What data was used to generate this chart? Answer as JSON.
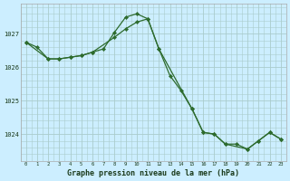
{
  "title": "Graphe pression niveau de la mer (hPa)",
  "background_color": "#cceeff",
  "grid_color": "#aacccc",
  "line_color": "#2d6b2d",
  "marker_color": "#2d6b2d",
  "xlim": [
    -0.5,
    23.5
  ],
  "ylim": [
    1023.2,
    1027.9
  ],
  "yticks": [
    1024,
    1025,
    1026,
    1027
  ],
  "xticks": [
    0,
    1,
    2,
    3,
    4,
    5,
    6,
    7,
    8,
    9,
    10,
    11,
    12,
    13,
    14,
    15,
    16,
    17,
    18,
    19,
    20,
    21,
    22,
    23
  ],
  "series1_x": [
    0,
    1,
    2,
    3,
    4,
    5,
    6,
    7,
    8,
    9,
    10,
    11,
    12,
    13,
    14,
    15,
    16,
    17,
    18,
    19,
    20,
    21,
    22,
    23
  ],
  "series1_y": [
    1026.75,
    1026.6,
    1026.25,
    1026.25,
    1026.3,
    1026.35,
    1026.45,
    1026.55,
    1027.05,
    1027.5,
    1027.6,
    1027.45,
    1026.55,
    1025.75,
    1025.3,
    1024.75,
    1024.05,
    1024.0,
    1023.7,
    1023.7,
    1023.55,
    1023.8,
    1024.05,
    1023.85
  ],
  "series2_x": [
    0,
    2,
    3,
    4,
    5,
    6,
    8,
    9,
    10,
    11,
    12,
    15,
    16,
    17,
    18,
    20,
    21,
    22,
    23
  ],
  "series2_y": [
    1026.75,
    1026.25,
    1026.25,
    1026.3,
    1026.35,
    1026.45,
    1026.9,
    1027.15,
    1027.35,
    1027.45,
    1026.55,
    1024.75,
    1024.05,
    1024.0,
    1023.7,
    1023.55,
    1023.8,
    1024.05,
    1023.85
  ]
}
